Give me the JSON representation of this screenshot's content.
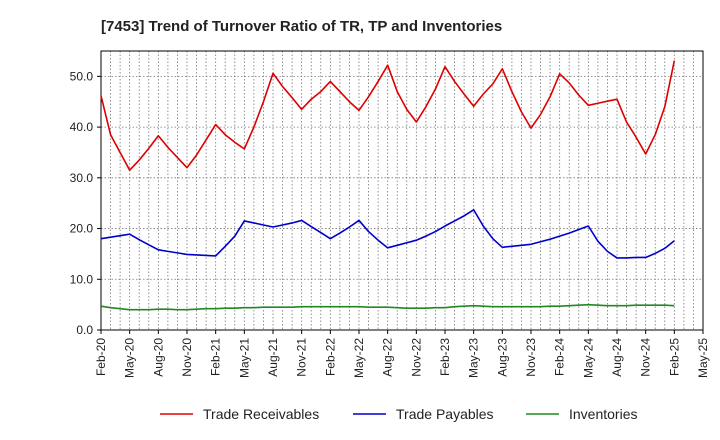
{
  "chart_data": {
    "type": "line",
    "title": "[7453]  Trend of Turnover Ratio of TR, TP and Inventories",
    "xlabel": "",
    "ylabel": "",
    "ylim": [
      0,
      55
    ],
    "yticks": [
      0,
      10,
      20,
      30,
      40,
      50
    ],
    "ytick_labels": [
      "0.0",
      "10.0",
      "20.0",
      "30.0",
      "40.0",
      "50.0"
    ],
    "xtick_labels": [
      "Feb-20",
      "May-20",
      "Aug-20",
      "Nov-20",
      "Feb-21",
      "May-21",
      "Aug-21",
      "Nov-21",
      "Feb-22",
      "May-22",
      "Aug-22",
      "Nov-22",
      "Feb-23",
      "May-23",
      "Aug-23",
      "Nov-23",
      "Feb-24",
      "May-24",
      "Aug-24",
      "Nov-24",
      "Feb-25",
      "May-25"
    ],
    "x": [
      "Feb-20",
      "Mar-20",
      "Apr-20",
      "May-20",
      "Jun-20",
      "Jul-20",
      "Aug-20",
      "Sep-20",
      "Oct-20",
      "Nov-20",
      "Dec-20",
      "Jan-21",
      "Feb-21",
      "Mar-21",
      "Apr-21",
      "May-21",
      "Jun-21",
      "Jul-21",
      "Aug-21",
      "Sep-21",
      "Oct-21",
      "Nov-21",
      "Dec-21",
      "Jan-22",
      "Feb-22",
      "Mar-22",
      "Apr-22",
      "May-22",
      "Jun-22",
      "Jul-22",
      "Aug-22",
      "Sep-22",
      "Oct-22",
      "Nov-22",
      "Dec-22",
      "Jan-23",
      "Feb-23",
      "Mar-23",
      "Apr-23",
      "May-23",
      "Jun-23",
      "Jul-23",
      "Aug-23",
      "Sep-23",
      "Oct-23",
      "Nov-23",
      "Dec-23",
      "Jan-24",
      "Feb-24",
      "Mar-24",
      "Apr-24",
      "May-24",
      "Jun-24",
      "Jul-24",
      "Aug-24",
      "Sep-24",
      "Oct-24",
      "Nov-24",
      "Dec-24",
      "Jan-25",
      "Feb-25",
      "Mar-25",
      "Apr-25",
      "May-25"
    ],
    "grid": true,
    "legend_position": "bottom",
    "series": [
      {
        "name": "Trade Receivables",
        "color": "#dd0000",
        "values": [
          46.2,
          38.5,
          35.0,
          31.5,
          33.5,
          35.8,
          38.3,
          36.0,
          34.0,
          32.0,
          34.5,
          37.5,
          40.5,
          38.5,
          37.0,
          35.7,
          40.0,
          45.0,
          50.6,
          48.0,
          45.8,
          43.5,
          45.5,
          47.0,
          49.0,
          47.0,
          45.0,
          43.3,
          46.0,
          49.0,
          52.2,
          47.0,
          43.5,
          41.0,
          44.0,
          47.5,
          51.9,
          49.0,
          46.5,
          44.1,
          46.5,
          48.5,
          51.5,
          47.0,
          43.0,
          39.8,
          42.5,
          46.0,
          50.5,
          48.7,
          46.3,
          44.3,
          44.7,
          45.1,
          45.5,
          41.0,
          38.0,
          34.7,
          38.5,
          44.0,
          53.1,
          null,
          null,
          null
        ]
      },
      {
        "name": "Trade Payables",
        "color": "#0000cc",
        "values": [
          18.0,
          18.3,
          18.6,
          18.9,
          17.8,
          16.8,
          15.8,
          15.5,
          15.2,
          14.9,
          14.8,
          14.7,
          14.6,
          16.5,
          18.5,
          21.5,
          21.1,
          20.7,
          20.3,
          20.7,
          21.1,
          21.6,
          20.4,
          19.2,
          18.0,
          19.1,
          20.3,
          21.6,
          19.4,
          17.7,
          16.2,
          16.7,
          17.2,
          17.7,
          18.5,
          19.4,
          20.5,
          21.5,
          22.5,
          23.7,
          20.5,
          18.0,
          16.3,
          16.5,
          16.7,
          16.9,
          17.4,
          17.9,
          18.5,
          19.1,
          19.8,
          20.5,
          17.5,
          15.5,
          14.2,
          14.2,
          14.3,
          14.3,
          15.1,
          16.1,
          17.6,
          null,
          null,
          null
        ]
      },
      {
        "name": "Inventories",
        "color": "#228822",
        "values": [
          4.7,
          4.4,
          4.2,
          4.0,
          4.0,
          4.0,
          4.1,
          4.1,
          4.0,
          4.0,
          4.1,
          4.2,
          4.2,
          4.3,
          4.3,
          4.4,
          4.4,
          4.5,
          4.5,
          4.5,
          4.5,
          4.6,
          4.6,
          4.6,
          4.6,
          4.6,
          4.6,
          4.6,
          4.5,
          4.5,
          4.5,
          4.4,
          4.3,
          4.3,
          4.3,
          4.4,
          4.4,
          4.6,
          4.7,
          4.8,
          4.7,
          4.6,
          4.6,
          4.6,
          4.6,
          4.6,
          4.6,
          4.7,
          4.7,
          4.8,
          4.9,
          5.0,
          4.9,
          4.8,
          4.8,
          4.8,
          4.9,
          4.9,
          4.9,
          4.9,
          4.8,
          null,
          null,
          null
        ]
      }
    ]
  }
}
